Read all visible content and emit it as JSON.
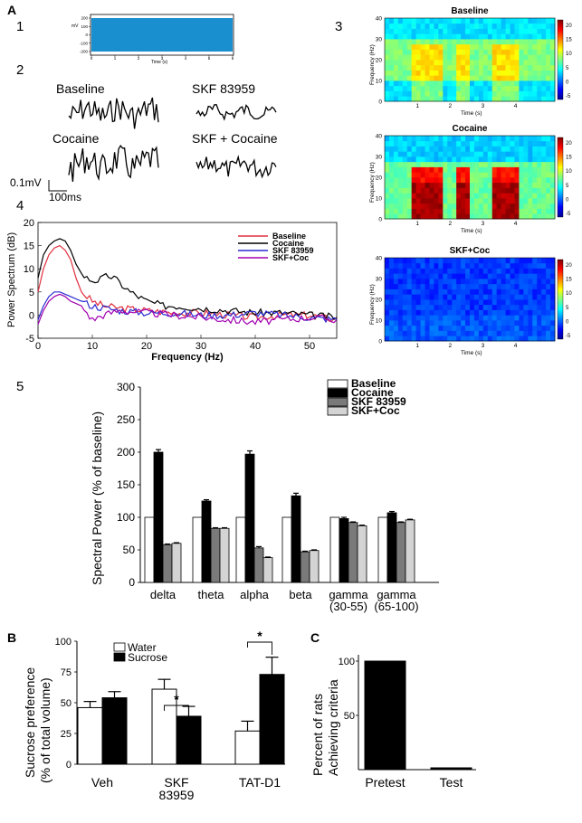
{
  "panel_labels": {
    "A": "A",
    "B": "B",
    "C": "C"
  },
  "sub_labels": {
    "s1": "1",
    "s2": "2",
    "s3": "3",
    "s4": "4",
    "s5": "5"
  },
  "raw_trace": {
    "ylabel": "mV",
    "xlabel": "Time (s)",
    "yticks": [
      "200",
      "100",
      "0",
      "-100",
      "-200"
    ],
    "xticks": [
      "0",
      "1",
      "2",
      "3",
      "4",
      "5",
      "6"
    ]
  },
  "traces": {
    "baseline": "Baseline",
    "skf": "SKF 83959",
    "cocaine": "Cocaine",
    "skf_cocaine": "SKF + Cocaine",
    "scale_v": "0.1mV",
    "scale_t": "100ms"
  },
  "colors": {
    "baseline": "#e03040",
    "cocaine": "#000000",
    "skf": "#2a2ad0",
    "skfcoc": "#a000b0",
    "trace_blue": "#1a8fd0"
  },
  "chart_data": [
    {
      "id": "spectrograms",
      "type": "heatmap",
      "panels": [
        "Baseline",
        "Cocaine",
        "SKF+Coc"
      ],
      "ylabel": "Frequency (Hz)",
      "xlabel": "Time (s)",
      "yticks": [
        "40",
        "30",
        "20",
        "10",
        "0"
      ],
      "xticks": [
        "1",
        "2",
        "3",
        "4"
      ],
      "colorbar": [
        "20",
        "15",
        "10",
        "5",
        "0",
        "-5"
      ],
      "clim": [
        -5,
        22
      ]
    },
    {
      "id": "power_spectrum",
      "type": "line",
      "ylabel": "Power Spectrum (dB)",
      "xlabel": "Frequency (Hz)",
      "xlim": [
        0,
        55
      ],
      "ylim": [
        -5,
        20
      ],
      "xticks": [
        "0",
        "10",
        "20",
        "30",
        "40",
        "50"
      ],
      "yticks": [
        "20",
        "15",
        "10",
        "5",
        "0",
        "-5"
      ],
      "legend": [
        "Baseline",
        "Cocaine",
        "SKF 83959",
        "SKF+Coc"
      ],
      "series": [
        {
          "name": "Baseline",
          "x": [
            0,
            1,
            2,
            3,
            4,
            5,
            6,
            7,
            8,
            9,
            10,
            12,
            15,
            20,
            25,
            30,
            35,
            40,
            45,
            50,
            55
          ],
          "values": [
            5,
            10,
            13,
            14.5,
            15,
            14,
            12,
            8,
            5,
            4,
            3,
            2,
            1.5,
            1,
            0.5,
            0.5,
            0,
            -0.5,
            0,
            0,
            -1
          ]
        },
        {
          "name": "Cocaine",
          "x": [
            0,
            1,
            2,
            3,
            4,
            5,
            6,
            7,
            8,
            9,
            10,
            11,
            12,
            13,
            14,
            15,
            17,
            20,
            23,
            25,
            30,
            35,
            40,
            45,
            50,
            55
          ],
          "values": [
            8,
            13,
            15,
            16,
            16.5,
            16,
            14,
            11,
            9,
            8,
            7.5,
            7.5,
            8,
            8.5,
            8,
            7,
            5,
            3,
            2,
            2,
            1.5,
            1,
            0.5,
            0.5,
            0,
            -0.5
          ]
        },
        {
          "name": "SKF 83959",
          "x": [
            0,
            1,
            2,
            3,
            4,
            5,
            6,
            8,
            10,
            15,
            20,
            25,
            30,
            35,
            40,
            45,
            50,
            55
          ],
          "values": [
            -1,
            2,
            4,
            5,
            5,
            4.5,
            4,
            3,
            2,
            1,
            0.5,
            0.5,
            0,
            0,
            0.5,
            0,
            -0.5,
            -1
          ]
        },
        {
          "name": "SKF+Coc",
          "x": [
            0,
            1,
            2,
            3,
            4,
            5,
            6,
            8,
            10,
            12,
            15,
            20,
            25,
            30,
            35,
            40,
            45,
            50,
            55
          ],
          "values": [
            -2,
            1,
            3,
            4,
            4.5,
            4,
            3,
            2,
            -1,
            0,
            1,
            0.5,
            0,
            -0.5,
            -1,
            -1.5,
            -1,
            -0.5,
            -1
          ]
        }
      ]
    },
    {
      "id": "spectral_power",
      "type": "bar",
      "ylabel": "Spectral Power (% of baseline)",
      "ylim": [
        0,
        300
      ],
      "yticks": [
        "0",
        "50",
        "100",
        "150",
        "200",
        "250",
        "300"
      ],
      "categories": [
        "delta",
        "theta",
        "alpha",
        "beta",
        "gamma (30-55)",
        "gamma (65-100)"
      ],
      "category_lines": [
        [
          "delta"
        ],
        [
          "theta"
        ],
        [
          "alpha"
        ],
        [
          "beta"
        ],
        [
          "gamma",
          "(30-55)"
        ],
        [
          "gamma",
          "(65-100)"
        ]
      ],
      "series": [
        {
          "name": "Baseline",
          "values": [
            100,
            100,
            100,
            100,
            100,
            100
          ],
          "errors": [
            0,
            0,
            0,
            0,
            0,
            0
          ]
        },
        {
          "name": "Cocaine",
          "values": [
            200,
            125,
            197,
            133,
            98,
            107
          ],
          "errors": [
            4,
            2,
            5,
            4,
            2,
            2
          ]
        },
        {
          "name": "SKF 83959",
          "values": [
            58,
            83,
            53,
            47,
            92,
            92
          ],
          "errors": [
            1,
            1,
            2,
            1,
            1,
            1
          ]
        },
        {
          "name": "SKF+Coc",
          "values": [
            60,
            83,
            38,
            49,
            87,
            96
          ],
          "errors": [
            1,
            1,
            1,
            1,
            1,
            1
          ]
        }
      ]
    },
    {
      "id": "sucrose_preference",
      "type": "bar",
      "ylabel": "Sucrose preference (% of total volume)",
      "ylim": [
        0,
        100
      ],
      "yticks": [
        "0",
        "25",
        "50",
        "75",
        "100"
      ],
      "categories": [
        "Veh",
        "SKF 83959",
        "TAT-D1"
      ],
      "category_lines": [
        [
          "Veh"
        ],
        [
          "SKF",
          "83959"
        ],
        [
          "TAT-D1"
        ]
      ],
      "legend": [
        "Water",
        "Sucrose"
      ],
      "significance": [
        "*",
        "*"
      ],
      "series": [
        {
          "name": "Water",
          "values": [
            46,
            61,
            27
          ],
          "errors": [
            5,
            8,
            8
          ]
        },
        {
          "name": "Sucrose",
          "values": [
            54,
            39,
            73
          ],
          "errors": [
            5,
            8,
            14
          ]
        }
      ]
    },
    {
      "id": "criteria",
      "type": "bar",
      "ylabel": "Percent of rats Achieving criteria",
      "ylabel_lines": [
        "Percent of rats",
        "Achieving criteria"
      ],
      "ylim": [
        0,
        100
      ],
      "yticks": [
        "100",
        "50"
      ],
      "categories": [
        "Pretest",
        "Test"
      ],
      "values": [
        100,
        0
      ]
    }
  ]
}
